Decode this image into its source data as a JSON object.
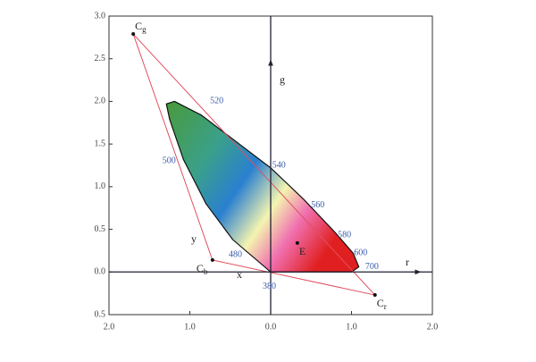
{
  "chart_data": {
    "type": "chromaticity",
    "xlim": [
      -2,
      2
    ],
    "ylim": [
      -0.5,
      3
    ],
    "xticks": [
      {
        "value": -2,
        "label": "2.0"
      },
      {
        "value": -1,
        "label": "1.0"
      },
      {
        "value": 0,
        "label": "0.0"
      },
      {
        "value": 1,
        "label": "1.0"
      },
      {
        "value": 2,
        "label": "2.0"
      }
    ],
    "yticks": [
      {
        "value": 3,
        "label": "3.0"
      },
      {
        "value": 2.5,
        "label": "2.5"
      },
      {
        "value": 2,
        "label": "2.0"
      },
      {
        "value": 1.5,
        "label": "1.5"
      },
      {
        "value": 1,
        "label": "1.0"
      },
      {
        "value": 0.5,
        "label": "0.5"
      },
      {
        "value": 0,
        "label": "0.0"
      },
      {
        "value": -0.5,
        "label": "0.5"
      }
    ],
    "axis_labels": {
      "r": "r",
      "g": "g",
      "x": "x",
      "y": "y"
    },
    "locus": {
      "color": "#111",
      "x": [
        0,
        -0.47,
        -0.8,
        -1.08,
        -1.25,
        -1.29,
        -1.19,
        -0.86,
        -0.36,
        0,
        0.41,
        0.8,
        1.02,
        1.09,
        1.0,
        0
      ],
      "y": [
        0,
        0.38,
        0.8,
        1.32,
        1.79,
        1.97,
        2.0,
        1.84,
        1.48,
        1.22,
        0.85,
        0.46,
        0.22,
        0.06,
        0,
        0
      ]
    },
    "triangle": {
      "color": "#e05060",
      "x": [
        -1.7,
        1.29,
        -0.72,
        -1.7
      ],
      "y": [
        2.79,
        -0.27,
        0.14,
        2.79
      ]
    },
    "points": [
      {
        "label": "C",
        "sub": "g",
        "x": -1.7,
        "y": 2.79
      },
      {
        "label": "C",
        "sub": "b",
        "x": -0.72,
        "y": 0.14
      },
      {
        "label": "C",
        "sub": "r",
        "x": 1.29,
        "y": -0.27
      },
      {
        "label": "E",
        "x": 0.33,
        "y": 0.34
      }
    ],
    "wavelengths": [
      {
        "label": "520",
        "x": -0.75,
        "y": 2.0
      },
      {
        "label": "500",
        "x": -1.34,
        "y": 1.3
      },
      {
        "label": "540",
        "x": 0.02,
        "y": 1.25
      },
      {
        "label": "560",
        "x": 0.5,
        "y": 0.78
      },
      {
        "label": "580",
        "x": 0.83,
        "y": 0.43
      },
      {
        "label": "600",
        "x": 1.03,
        "y": 0.22
      },
      {
        "label": "700",
        "x": 1.17,
        "y": 0.06
      },
      {
        "label": "480",
        "x": -0.52,
        "y": 0.2
      },
      {
        "label": "380",
        "x": -0.1,
        "y": -0.17
      }
    ]
  }
}
